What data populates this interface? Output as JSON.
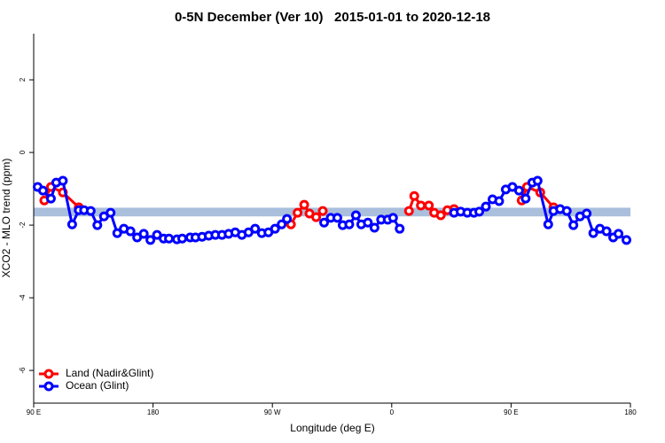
{
  "chart_data": {
    "type": "line",
    "title": "0-5N December (Ver 10)   2015-01-01 to 2020-12-18",
    "x_label": "Longitude (deg E)",
    "y_label": "XCO2 - MLO trend (ppm)",
    "xlim": [
      90,
      540
    ],
    "xticks": [
      {
        "value": 90,
        "label": "90 E"
      },
      180,
      {
        "value": 270,
        "label": "90 W"
      },
      {
        "value": 360,
        "label": "0"
      },
      {
        "value": 450,
        "label": "90 E"
      },
      {
        "value": 540,
        "label": "180"
      }
    ],
    "ylim": [
      -6.9,
      3.27
    ],
    "yticks": [
      -6,
      -4,
      -2,
      0,
      2
    ],
    "reference_band": {
      "color": "#a9bfdc",
      "range": [
        -1.52,
        -1.76
      ]
    },
    "legend": "bottom-left",
    "series": [
      {
        "name": "Land (Nadir&Glint)",
        "color": "#ff0000",
        "x": [
          98,
          103,
          112,
          124,
          null,
          284,
          289,
          294,
          298,
          303,
          308,
          null,
          373,
          377,
          382,
          388,
          392,
          397,
          402,
          407,
          null,
          458,
          462,
          472,
          482
        ],
        "values": [
          -1.32,
          -0.95,
          -1.1,
          -1.51,
          null,
          -1.98,
          -1.66,
          -1.44,
          -1.68,
          -1.78,
          -1.61,
          null,
          -1.61,
          -1.2,
          -1.46,
          -1.46,
          -1.66,
          -1.73,
          -1.59,
          -1.56,
          null,
          -1.32,
          -0.95,
          -1.1,
          -1.51
        ]
      },
      {
        "name": "Ocean (Glint)",
        "color": "#0000ff",
        "x": [
          93,
          97,
          103,
          107,
          112,
          119,
          124,
          128,
          133,
          138,
          143,
          148,
          153,
          158,
          163,
          168,
          173,
          178,
          183,
          188,
          192,
          198,
          202,
          208,
          212,
          217,
          222,
          227,
          232,
          237,
          242,
          247,
          252,
          257,
          262,
          267,
          272,
          277,
          281,
          null,
          309,
          314,
          319,
          323,
          328,
          333,
          337,
          342,
          347,
          352,
          357,
          361,
          366,
          null,
          407,
          412,
          417,
          422,
          426,
          431,
          436,
          441,
          446,
          451,
          456,
          461,
          466,
          470,
          478,
          482,
          487,
          492,
          497,
          502,
          507,
          512,
          517,
          522,
          527,
          531,
          537
        ],
        "values": [
          -0.95,
          -1.05,
          -1.27,
          -0.83,
          -0.78,
          -1.98,
          -1.59,
          -1.59,
          -1.61,
          -2.0,
          -1.76,
          -1.66,
          -2.22,
          -2.1,
          -2.17,
          -2.34,
          -2.24,
          -2.41,
          -2.27,
          -2.37,
          -2.37,
          -2.39,
          -2.37,
          -2.34,
          -2.34,
          -2.32,
          -2.29,
          -2.27,
          -2.27,
          -2.24,
          -2.2,
          -2.27,
          -2.2,
          -2.1,
          -2.22,
          -2.2,
          -2.1,
          -1.98,
          -1.83,
          null,
          -1.93,
          -1.8,
          -1.8,
          -2.0,
          -1.98,
          -1.73,
          -1.98,
          -1.93,
          -2.07,
          -1.85,
          -1.85,
          -1.8,
          -2.1,
          null,
          -1.66,
          -1.63,
          -1.66,
          -1.66,
          -1.63,
          -1.49,
          -1.29,
          -1.34,
          -1.02,
          -0.95,
          -1.05,
          -1.27,
          -0.83,
          -0.78,
          -1.98,
          -1.61,
          -1.56,
          -1.61,
          -2.0,
          -1.76,
          -1.68,
          -2.22,
          -2.1,
          -2.17,
          -2.34,
          -2.24,
          -2.41
        ]
      }
    ]
  }
}
